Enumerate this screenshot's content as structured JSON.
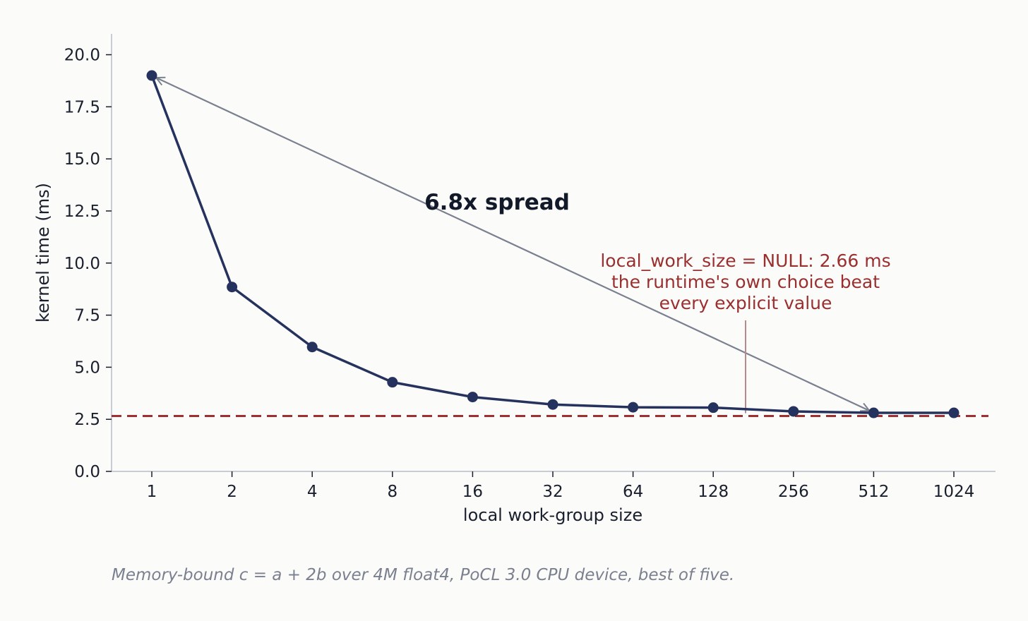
{
  "chart_data": {
    "type": "line",
    "title": "",
    "xlabel": "local work-group size",
    "ylabel": "kernel time (ms)",
    "categories": [
      "1",
      "2",
      "4",
      "8",
      "16",
      "32",
      "64",
      "128",
      "256",
      "512",
      "1024"
    ],
    "series": [
      {
        "values": [
          19.0,
          8.85,
          5.97,
          4.28,
          3.57,
          3.21,
          3.08,
          3.06,
          2.88,
          2.81,
          2.81
        ]
      }
    ],
    "ylim": [
      0,
      21
    ],
    "yticks": [
      "0.0",
      "2.5",
      "5.0",
      "7.5",
      "10.0",
      "12.5",
      "15.0",
      "17.5",
      "20.0"
    ],
    "reference_line": {
      "value": 2.66
    },
    "annotations": {
      "spread": {
        "text": "6.8x spread",
        "from_category": "1",
        "from_value": 19.0,
        "to_category": "512",
        "to_value": 2.81
      },
      "null_note": {
        "lines": [
          "local_work_size = NULL: 2.66 ms",
          "the runtime's own choice beat",
          "every explicit value"
        ],
        "value": 2.66
      }
    },
    "grid": false,
    "legend": "none",
    "colors": {
      "line": "#26325e",
      "reference": "#a03030",
      "annotation": "#7a8090",
      "note": "#9a2f2f"
    }
  },
  "caption": "Memory-bound c = a + 2b over 4M float4, PoCL 3.0 CPU device, best of five."
}
